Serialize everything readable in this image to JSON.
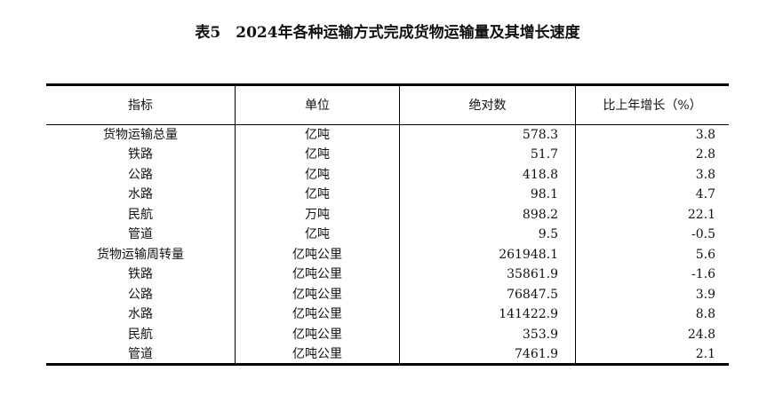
{
  "title": "表5　2024年各种运输方式完成货物运输量及其增长速度",
  "headers": [
    "指标",
    "单位",
    "绝对数",
    "比上年增长（%）"
  ],
  "rows": [
    [
      "货物运输总量",
      "亿吨",
      "578.3",
      "3.8"
    ],
    [
      "铁路",
      "亿吨",
      "51.7",
      "2.8"
    ],
    [
      "公路",
      "亿吨",
      "418.8",
      "3.8"
    ],
    [
      "水路",
      "亿吨",
      "98.1",
      "4.7"
    ],
    [
      "民航",
      "万吨",
      "898.2",
      "22.1"
    ],
    [
      "管道",
      "亿吨",
      "9.5",
      "-0.5"
    ],
    [
      "货物运输周转量",
      "亿吨公里",
      "261948.1",
      "5.6"
    ],
    [
      "铁路",
      "亿吨公里",
      "35861.9",
      "-1.6"
    ],
    [
      "公路",
      "亿吨公里",
      "76847.5",
      "3.9"
    ],
    [
      "水路",
      "亿吨公里",
      "141422.9",
      "8.8"
    ],
    [
      "民航",
      "亿吨公里",
      "353.9",
      "24.8"
    ],
    [
      "管道",
      "亿吨公里",
      "7461.9",
      "2.1"
    ]
  ]
}
